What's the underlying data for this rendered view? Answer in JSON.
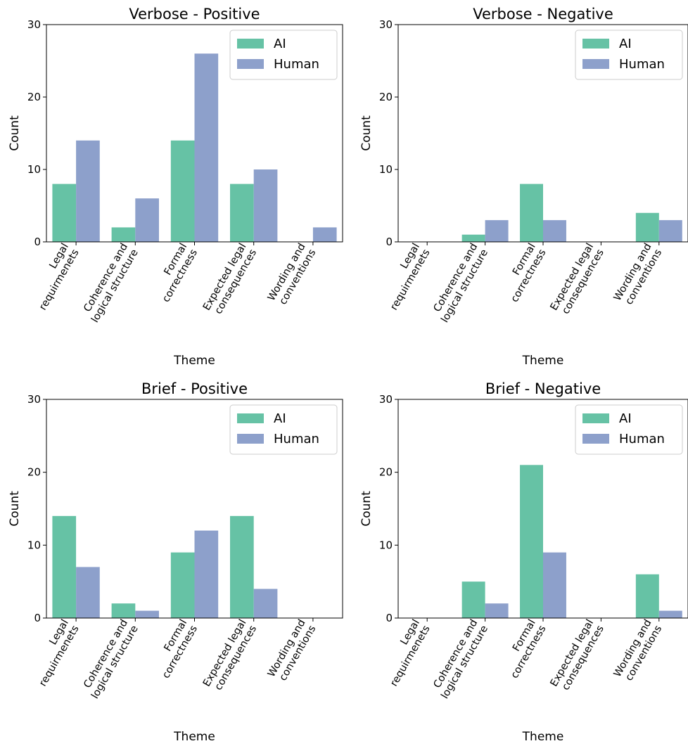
{
  "colors": {
    "ai": "#66c2a5",
    "human": "#8da0cb"
  },
  "chart_data": [
    {
      "type": "bar",
      "title": "Verbose - Positive",
      "xlabel": "Theme",
      "ylabel": "Count",
      "ylim": [
        0,
        30
      ],
      "yticks": [
        "0",
        "10",
        "20",
        "30"
      ],
      "categories": [
        [
          "Legal",
          "requirmenets"
        ],
        [
          "Coherence and",
          "logical structure"
        ],
        [
          "Formal",
          "correctness"
        ],
        [
          "Expected legal",
          "consequences"
        ],
        [
          "Wording and",
          "conventions"
        ]
      ],
      "series": [
        {
          "name": "AI",
          "values": [
            8,
            2,
            14,
            8,
            0
          ]
        },
        {
          "name": "Human",
          "values": [
            14,
            6,
            26,
            10,
            2
          ]
        }
      ],
      "legend": "top-right",
      "grid": false
    },
    {
      "type": "bar",
      "title": "Verbose - Negative",
      "xlabel": "Theme",
      "ylabel": "Count",
      "ylim": [
        0,
        30
      ],
      "yticks": [
        "0",
        "10",
        "20",
        "30"
      ],
      "categories": [
        [
          "Legal",
          "requirmenets"
        ],
        [
          "Coherence and",
          "logical structure"
        ],
        [
          "Formal",
          "correctness"
        ],
        [
          "Expected legal",
          "consequences"
        ],
        [
          "Wording and",
          "conventions"
        ]
      ],
      "series": [
        {
          "name": "AI",
          "values": [
            0,
            1,
            8,
            0,
            4
          ]
        },
        {
          "name": "Human",
          "values": [
            0,
            3,
            3,
            0,
            3
          ]
        }
      ],
      "legend": "top-right",
      "grid": false
    },
    {
      "type": "bar",
      "title": "Brief - Positive",
      "xlabel": "Theme",
      "ylabel": "Count",
      "ylim": [
        0,
        30
      ],
      "yticks": [
        "0",
        "10",
        "20",
        "30"
      ],
      "categories": [
        [
          "Legal",
          "requirmenets"
        ],
        [
          "Coherence and",
          "logical structure"
        ],
        [
          "Formal",
          "correctness"
        ],
        [
          "Expected legal",
          "consequences"
        ],
        [
          "Wording and",
          "conventions"
        ]
      ],
      "series": [
        {
          "name": "AI",
          "values": [
            14,
            2,
            9,
            14,
            0
          ]
        },
        {
          "name": "Human",
          "values": [
            7,
            1,
            12,
            4,
            0
          ]
        }
      ],
      "legend": "top-right",
      "grid": false
    },
    {
      "type": "bar",
      "title": "Brief - Negative",
      "xlabel": "Theme",
      "ylabel": "Count",
      "ylim": [
        0,
        30
      ],
      "yticks": [
        "0",
        "10",
        "20",
        "30"
      ],
      "categories": [
        [
          "Legal",
          "requirmenets"
        ],
        [
          "Coherence and",
          "logical structure"
        ],
        [
          "Formal",
          "correctness"
        ],
        [
          "Expected legal",
          "consequences"
        ],
        [
          "Wording and",
          "conventions"
        ]
      ],
      "series": [
        {
          "name": "AI",
          "values": [
            0,
            5,
            21,
            0,
            6
          ]
        },
        {
          "name": "Human",
          "values": [
            0,
            2,
            9,
            0,
            1
          ]
        }
      ],
      "legend": "top-right",
      "grid": false
    }
  ]
}
